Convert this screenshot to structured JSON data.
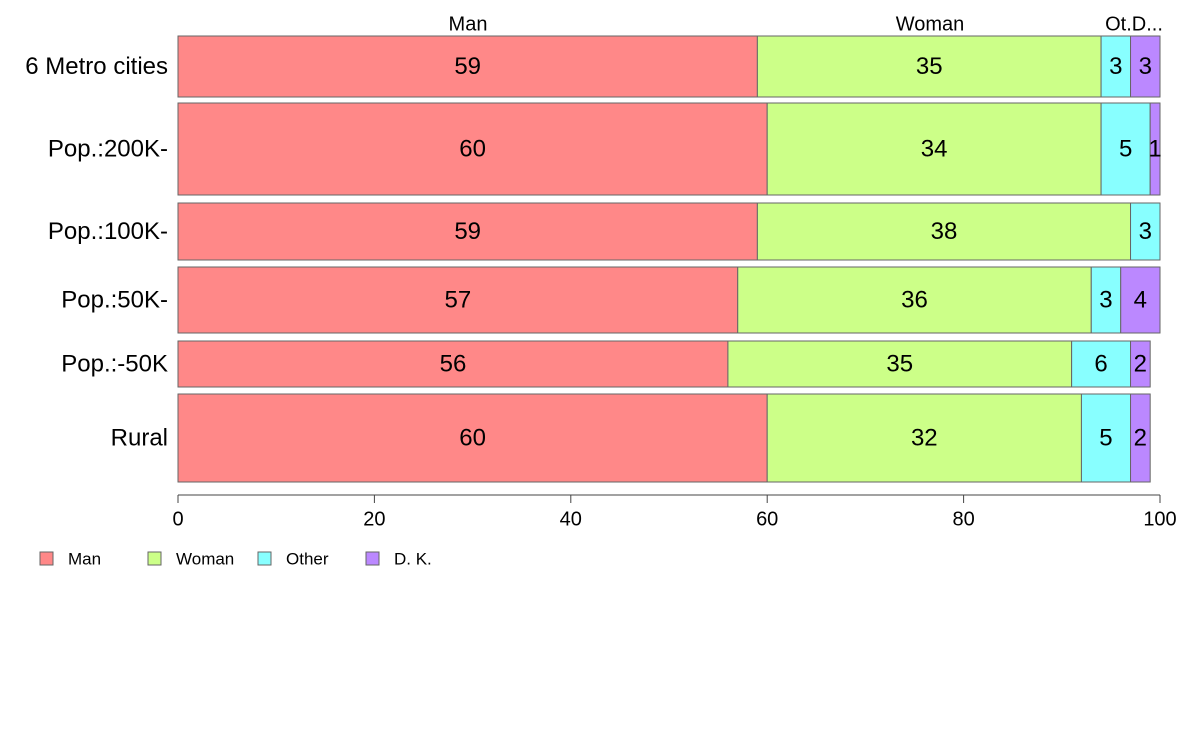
{
  "chart_data": {
    "type": "bar",
    "orientation": "horizontal",
    "stacked": true,
    "categories": [
      "6 Metro cities",
      "Pop.:200K-",
      "Pop.:100K-",
      "Pop.:50K-",
      "Pop.:-50K",
      "Rural"
    ],
    "series": [
      {
        "name": "Man",
        "color": "#ff8888",
        "values": [
          59,
          60,
          59,
          57,
          56,
          60
        ],
        "labels": [
          "59",
          "60",
          "59",
          "57",
          "56",
          "60"
        ]
      },
      {
        "name": "Woman",
        "color": "#ccff88",
        "values": [
          35,
          34,
          38,
          36,
          35,
          32
        ],
        "labels": [
          "35",
          "34",
          "38",
          "36",
          "35",
          "32"
        ]
      },
      {
        "name": "Other",
        "color": "#88ffff",
        "values": [
          3,
          5,
          3,
          3,
          6,
          5
        ],
        "labels": [
          "3",
          "5",
          "3",
          "3",
          "6",
          "5"
        ]
      },
      {
        "name": "D. K.",
        "color": "#bb88ff",
        "values": [
          3,
          1,
          0,
          4,
          2,
          2
        ],
        "labels": [
          "3",
          "1",
          "",
          "4",
          "2",
          "2"
        ]
      }
    ],
    "column_headers": [
      "Man",
      "Woman",
      "Ot.D..."
    ],
    "xlim": [
      0,
      100
    ],
    "x_ticks": [
      0,
      20,
      40,
      60,
      80,
      100
    ],
    "legend": {
      "position": "bottom-left",
      "entries": [
        "Man",
        "Woman",
        "Other",
        "D. K."
      ]
    },
    "grid": false
  }
}
